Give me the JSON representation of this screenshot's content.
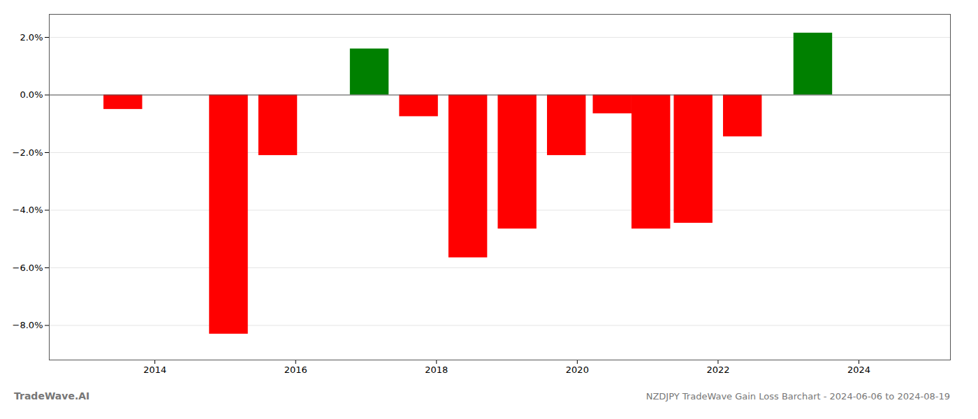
{
  "chart_data": {
    "type": "bar",
    "title": "NZDJPY TradeWave Gain Loss Barchart - 2024-06-06 to 2024-08-19",
    "annotation": "TradeWave.AI",
    "x": [
      2013.55,
      2015.05,
      2015.75,
      2017.05,
      2017.75,
      2018.45,
      2019.15,
      2019.85,
      2020.5,
      2021.05,
      2021.65,
      2022.35,
      2023.35
    ],
    "values": [
      -0.5,
      -8.3,
      -2.1,
      1.6,
      -0.75,
      -5.65,
      -4.65,
      -2.1,
      -0.65,
      -4.65,
      -4.45,
      -1.45,
      2.15
    ],
    "colors": [
      "red",
      "red",
      "red",
      "green",
      "red",
      "red",
      "red",
      "red",
      "red",
      "red",
      "red",
      "red",
      "green"
    ],
    "xlim": [
      2012.5,
      2025.3
    ],
    "xticks": [
      2014,
      2016,
      2018,
      2020,
      2022,
      2024
    ],
    "ylim": [
      -9.2,
      2.8
    ],
    "yticks": [
      {
        "value": 2.0,
        "label": "2.0%"
      },
      {
        "value": 0.0,
        "label": "0.0%"
      },
      {
        "value": -2.0,
        "label": "−2.0%"
      },
      {
        "value": -4.0,
        "label": "−4.0%"
      },
      {
        "value": -6.0,
        "label": "−6.0%"
      },
      {
        "value": -8.0,
        "label": "−8.0%"
      }
    ],
    "grid": true
  }
}
